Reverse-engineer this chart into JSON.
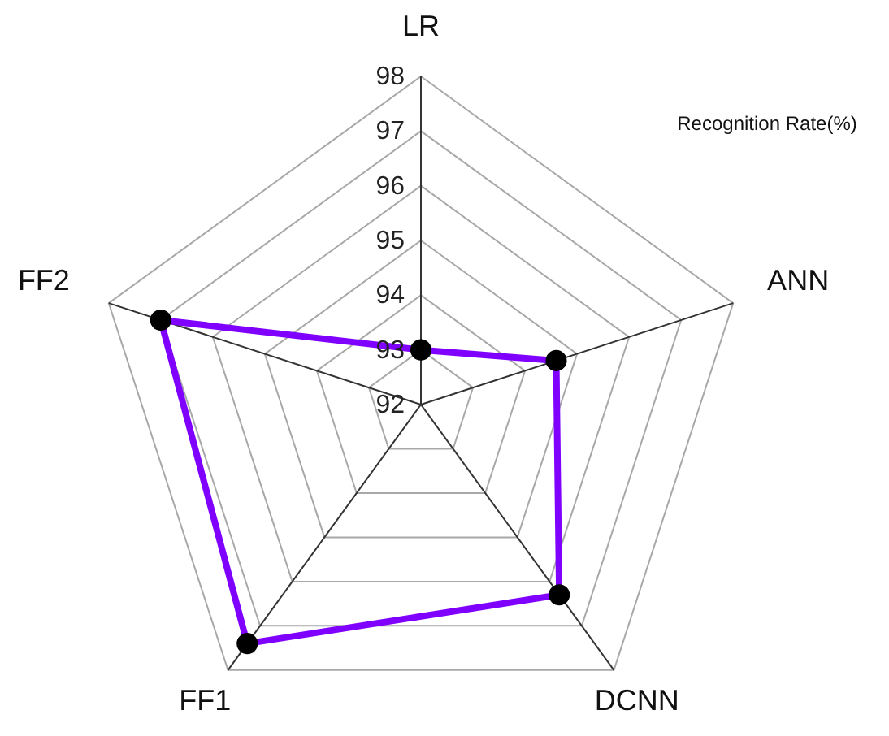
{
  "chart_data": {
    "type": "radar",
    "ylabel": "Recognition Rate(%)",
    "categories": [
      "LR",
      "ANN",
      "DCNN",
      "FF1",
      "FF2"
    ],
    "series": [
      {
        "color": "#7f00ff",
        "values": [
          93.0,
          94.6,
          96.3,
          97.4,
          97.0
        ]
      }
    ],
    "ylim": [
      92,
      98
    ],
    "yticks": [
      92,
      93,
      94,
      95,
      96,
      97,
      98
    ],
    "grid": true,
    "marker": "circle"
  }
}
